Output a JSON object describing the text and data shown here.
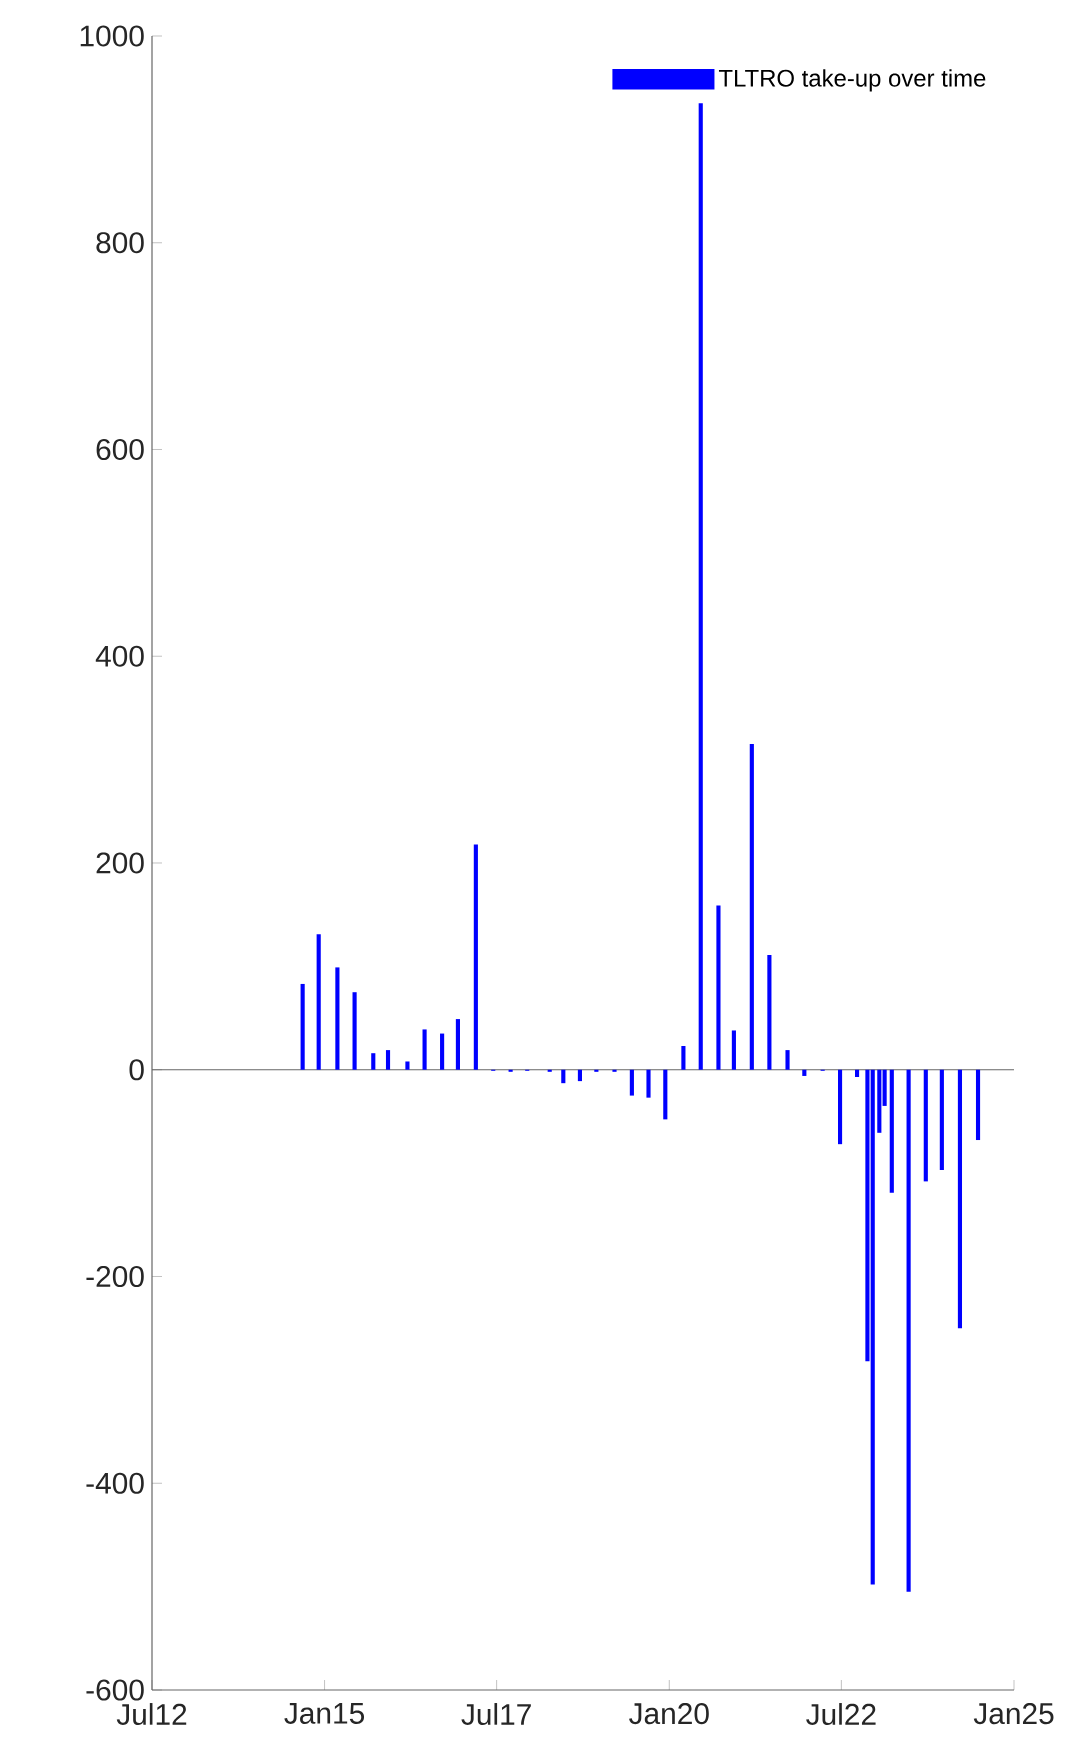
{
  "chart_data": {
    "type": "bar",
    "x": [
      "2014-09-07",
      "2014-12-01",
      "2015-03-10",
      "2015-06-09",
      "2015-09-16",
      "2015-12-03",
      "2016-03-15",
      "2016-06-14",
      "2016-09-15",
      "2016-12-08",
      "2017-03-13",
      "2017-06-13",
      "2017-09-13",
      "2017-12-10",
      "2018-04-08",
      "2018-06-19",
      "2018-09-15",
      "2018-12-11",
      "2019-03-17",
      "2019-06-17",
      "2019-09-13",
      "2019-12-11",
      "2020-03-16",
      "2020-06-16",
      "2020-09-18",
      "2020-12-09",
      "2021-03-14",
      "2021-06-15",
      "2021-09-19",
      "2021-12-17",
      "2022-03-24",
      "2022-06-24",
      "2022-09-22",
      "2022-11-16",
      "2022-12-14",
      "2023-01-18",
      "2023-02-15",
      "2023-03-25",
      "2023-06-22",
      "2023-09-21",
      "2023-12-15",
      "2024-03-20",
      "2024-06-24"
    ],
    "series": [
      {
        "name": "TLTRO take-up over time",
        "color": "#0000ff",
        "values": [
          83,
          131,
          99,
          75,
          16,
          19,
          8,
          39,
          35,
          49,
          218,
          -1,
          -2,
          -1,
          -2,
          -13,
          -11,
          -2,
          -2,
          -25,
          -27,
          -48,
          23,
          935,
          159,
          38,
          315,
          111,
          19,
          -6,
          -1,
          -72,
          -7,
          -282,
          -498,
          -61,
          -35,
          -119,
          -505,
          -108,
          -97,
          -250,
          -68
        ]
      }
    ],
    "xlim": [
      "2012-07-01",
      "2025-01-01"
    ],
    "xticks": [
      {
        "value": "2012-07-01",
        "label": "Jul12"
      },
      {
        "value": "2015-01-01",
        "label": "Jan15"
      },
      {
        "value": "2017-07-01",
        "label": "Jul17"
      },
      {
        "value": "2020-01-01",
        "label": "Jan20"
      },
      {
        "value": "2022-07-01",
        "label": "Jul22"
      },
      {
        "value": "2025-01-01",
        "label": "Jan25"
      }
    ],
    "ylim": [
      -600,
      1000
    ],
    "yticks": [
      -600,
      -400,
      -200,
      0,
      200,
      400,
      600,
      800,
      1000
    ],
    "legend": "top right"
  }
}
